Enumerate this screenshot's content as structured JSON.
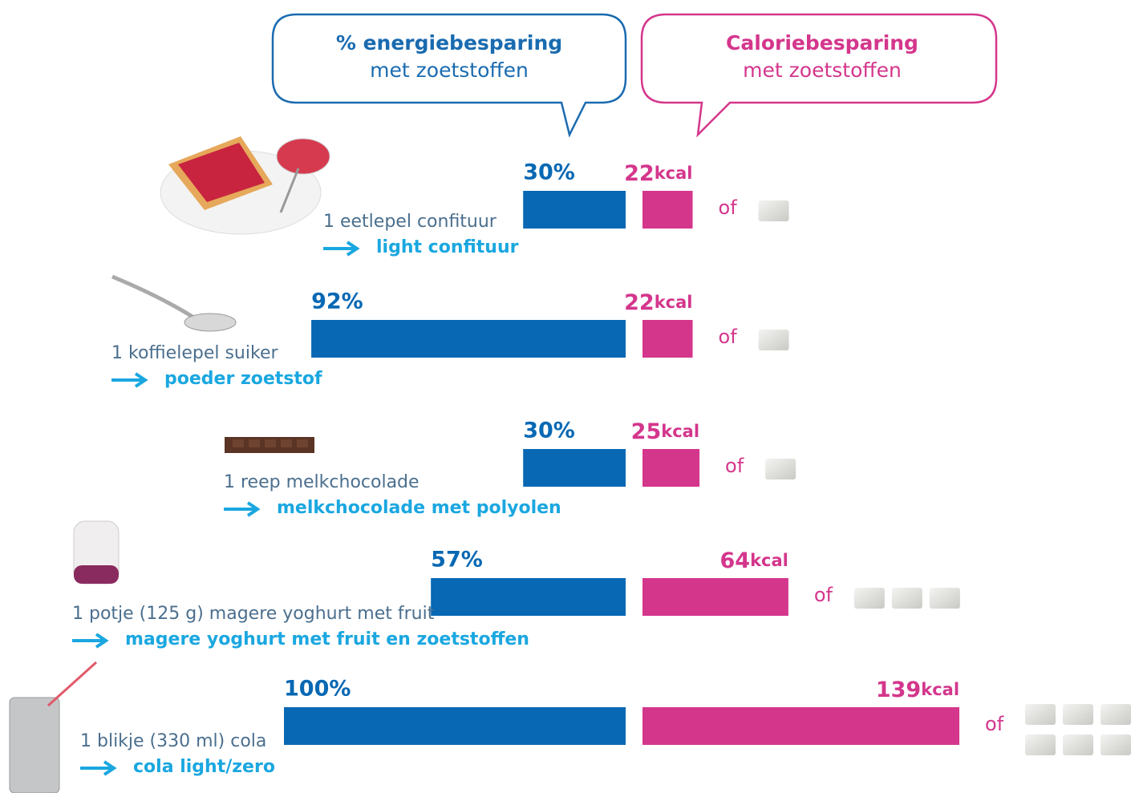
{
  "bubbles": {
    "energy": {
      "title": "% energiebesparing",
      "subtitle": "met zoetstoffen"
    },
    "calorie": {
      "title": "Caloriebesparing",
      "subtitle": "met zoetstoffen"
    }
  },
  "kcal_unit": "kcal",
  "of_label": "of",
  "rows": [
    {
      "from": "1 eetlepel confituur",
      "to": "light confituur",
      "energy_saving": 30,
      "energy_label": "30%",
      "kcal_saving": 22,
      "sugar_cubes": 1
    },
    {
      "from": "1 koffielepel suiker",
      "to": "poeder zoetstof",
      "energy_saving": 92,
      "energy_label": "92%",
      "kcal_saving": 22,
      "sugar_cubes": 1
    },
    {
      "from": "1 reep melkchocolade",
      "to": "melkchocolade met polyolen",
      "energy_saving": 30,
      "energy_label": "30%",
      "kcal_saving": 25,
      "sugar_cubes": 1
    },
    {
      "from": "1 potje (125 g) magere yoghurt met fruit",
      "to": "magere yoghurt met fruit en zoetstoffen",
      "energy_saving": 57,
      "energy_label": "57%",
      "kcal_saving": 64,
      "sugar_cubes": 3
    },
    {
      "from": "1 blikje (330 ml) cola",
      "to": "cola light/zero",
      "energy_saving": 100,
      "energy_label": "100%",
      "kcal_saving": 139,
      "sugar_cubes": 6
    }
  ]
}
